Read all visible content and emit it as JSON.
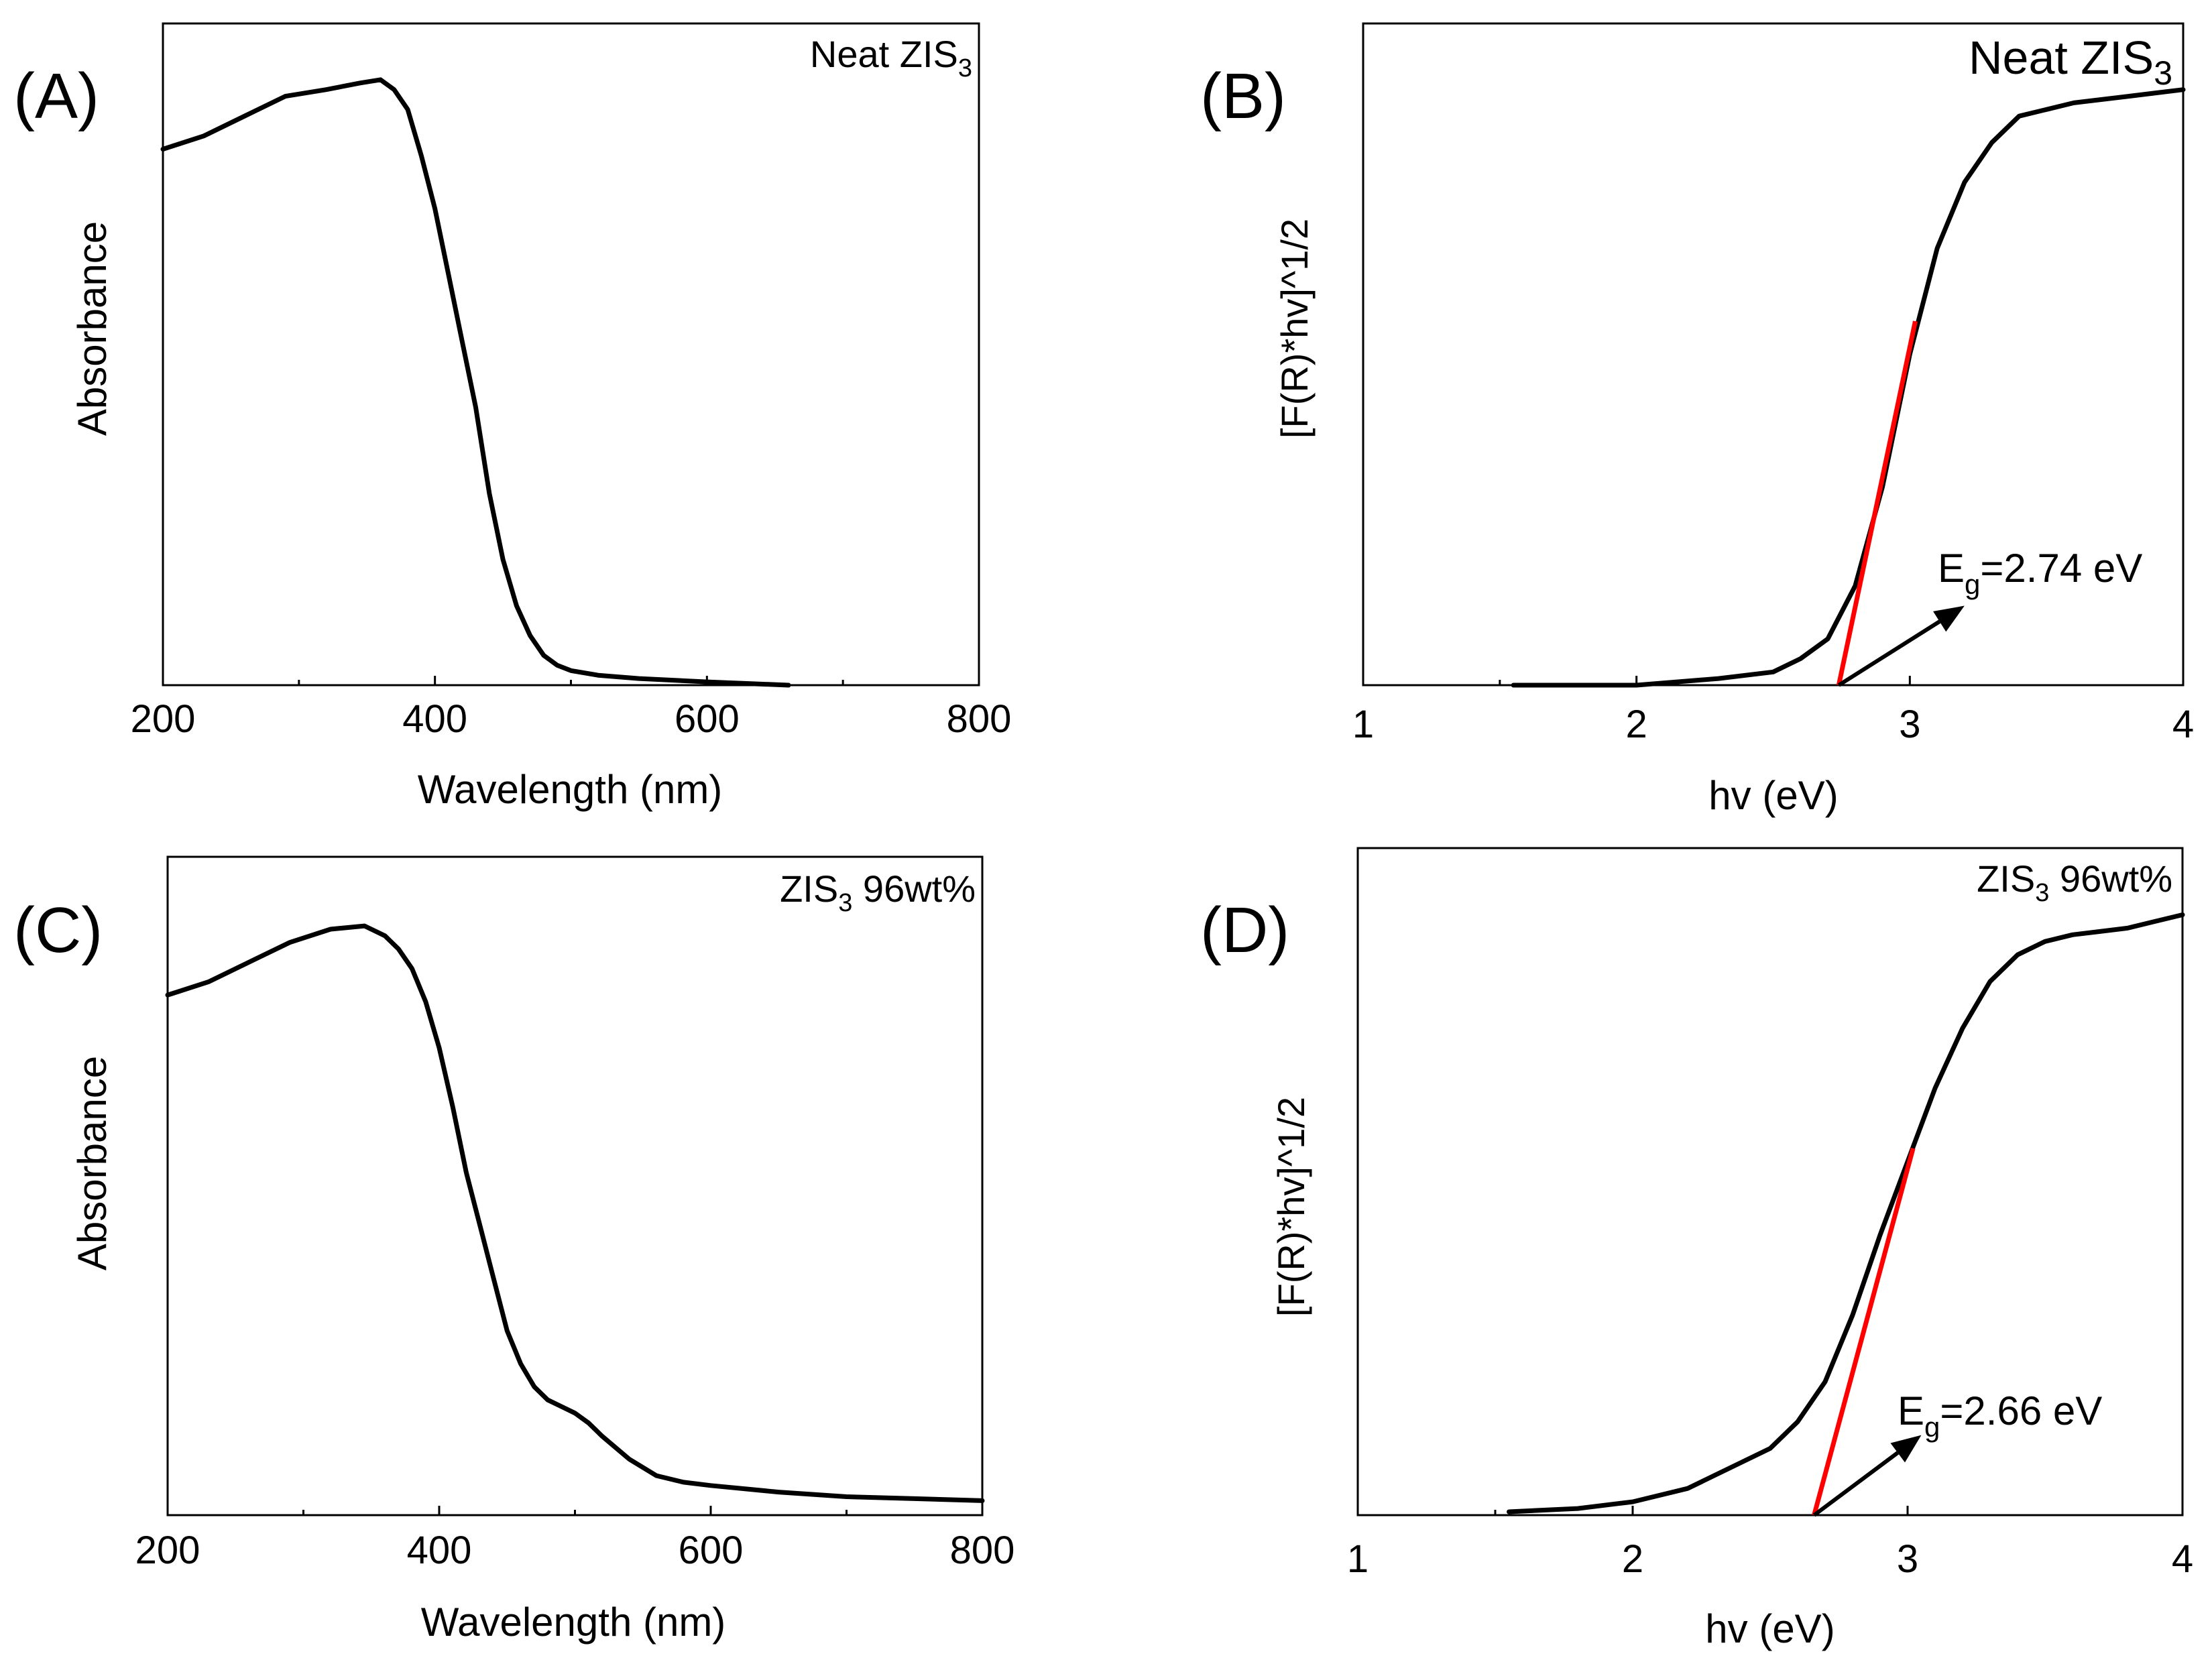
{
  "colors": {
    "curve": "#000000",
    "fit": "#ff0000",
    "frame": "#000000",
    "background": "#ffffff"
  },
  "chart_data": [
    {
      "type": "line",
      "panel": "(A)",
      "annotation": {
        "main": "Neat ZIS",
        "sub": "3"
      },
      "xlabel": "Wavelength (nm)",
      "ylabel": "Absorbance",
      "xlim": [
        200,
        800
      ],
      "ylim": [
        0,
        1
      ],
      "xticks": [
        "200",
        "400",
        "600",
        "800"
      ],
      "x": [
        200,
        230,
        260,
        290,
        320,
        345,
        360,
        370,
        380,
        390,
        400,
        410,
        420,
        430,
        440,
        450,
        460,
        470,
        480,
        490,
        500,
        520,
        550,
        600,
        660
      ],
      "y": [
        0.81,
        0.83,
        0.86,
        0.89,
        0.9,
        0.91,
        0.915,
        0.9,
        0.87,
        0.8,
        0.72,
        0.62,
        0.52,
        0.42,
        0.29,
        0.19,
        0.12,
        0.075,
        0.045,
        0.03,
        0.022,
        0.015,
        0.01,
        0.005,
        0.0
      ]
    },
    {
      "type": "line",
      "panel": "(B)",
      "annotation": {
        "main": "Neat ZIS",
        "sub": "3"
      },
      "gap_label": {
        "main": "E",
        "sub": "g",
        "value": "=2.74 eV"
      },
      "xlabel": "hv (eV)",
      "ylabel": "[F(R)*hv]^1/2",
      "xlim": [
        1,
        4
      ],
      "ylim": [
        0,
        1
      ],
      "xticks": [
        "1",
        "2",
        "3",
        "4"
      ],
      "x": [
        1.55,
        2.0,
        2.3,
        2.5,
        2.6,
        2.7,
        2.8,
        2.9,
        3.0,
        3.1,
        3.2,
        3.3,
        3.4,
        3.5,
        3.6,
        3.7,
        3.8,
        3.9,
        4.0
      ],
      "y": [
        0.0,
        0.0,
        0.01,
        0.02,
        0.04,
        0.07,
        0.15,
        0.3,
        0.5,
        0.66,
        0.76,
        0.82,
        0.86,
        0.87,
        0.88,
        0.885,
        0.89,
        0.895,
        0.9
      ],
      "fit_line": {
        "x": [
          2.74,
          3.02
        ],
        "y": [
          0.0,
          0.55
        ]
      },
      "arrow": {
        "from": [
          2.74,
          0.0
        ],
        "to": [
          3.2,
          0.12
        ]
      }
    },
    {
      "type": "line",
      "panel": "(C)",
      "annotation": {
        "main": "ZIS",
        "sub": "3",
        "suffix": " 96wt%"
      },
      "xlabel": "Wavelength (nm)",
      "ylabel": "Absorbance",
      "xlim": [
        200,
        800
      ],
      "ylim": [
        0,
        1
      ],
      "xticks": [
        "200",
        "400",
        "600",
        "800"
      ],
      "x": [
        200,
        230,
        260,
        290,
        320,
        345,
        360,
        370,
        380,
        390,
        400,
        410,
        420,
        430,
        440,
        450,
        460,
        470,
        480,
        490,
        500,
        510,
        520,
        540,
        560,
        580,
        600,
        650,
        700,
        750,
        800
      ],
      "y": [
        0.79,
        0.81,
        0.84,
        0.87,
        0.89,
        0.895,
        0.88,
        0.86,
        0.83,
        0.78,
        0.71,
        0.62,
        0.52,
        0.44,
        0.36,
        0.28,
        0.23,
        0.195,
        0.175,
        0.165,
        0.155,
        0.14,
        0.12,
        0.085,
        0.06,
        0.05,
        0.045,
        0.035,
        0.028,
        0.025,
        0.022
      ]
    },
    {
      "type": "line",
      "panel": "(D)",
      "annotation": {
        "main": "ZIS",
        "sub": "3",
        "suffix": " 96wt%"
      },
      "gap_label": {
        "main": "E",
        "sub": "g",
        "value": "=2.66 eV"
      },
      "xlabel": "hv (eV)",
      "ylabel": "[F(R)*hv]^1/2",
      "xlim": [
        1,
        4
      ],
      "ylim": [
        0,
        1
      ],
      "xticks": [
        "1",
        "2",
        "3",
        "4"
      ],
      "x": [
        1.55,
        1.8,
        2.0,
        2.2,
        2.4,
        2.5,
        2.6,
        2.7,
        2.8,
        2.9,
        3.0,
        3.1,
        3.2,
        3.3,
        3.4,
        3.5,
        3.6,
        3.7,
        3.8,
        3.9,
        4.0
      ],
      "y": [
        0.005,
        0.01,
        0.02,
        0.04,
        0.08,
        0.1,
        0.14,
        0.2,
        0.3,
        0.42,
        0.53,
        0.64,
        0.73,
        0.8,
        0.84,
        0.86,
        0.87,
        0.875,
        0.88,
        0.89,
        0.9
      ],
      "fit_line": {
        "x": [
          2.66,
          3.02
        ],
        "y": [
          0.0,
          0.55
        ]
      },
      "arrow": {
        "from": [
          2.66,
          0.0
        ],
        "to": [
          3.05,
          0.12
        ]
      }
    }
  ]
}
